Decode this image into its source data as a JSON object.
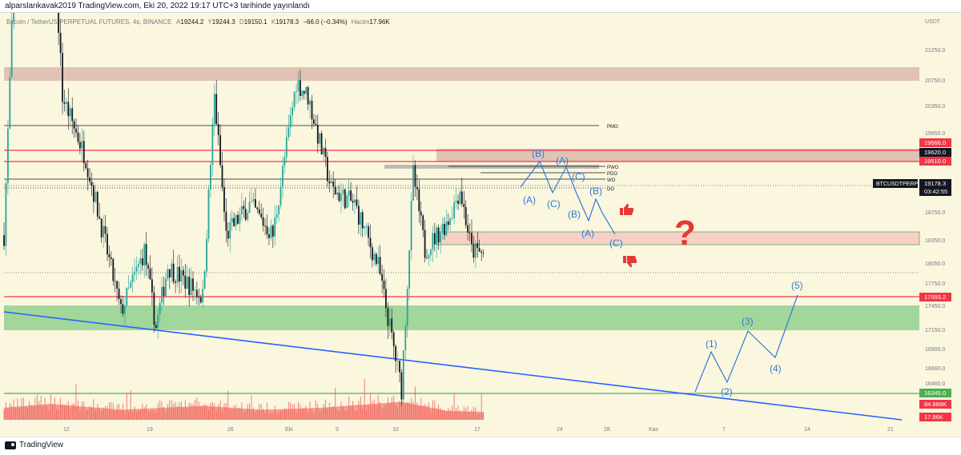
{
  "header": {
    "publish_line": "alparslankavak2019 TradingView.com, Eki 20, 2022 19:17 UTC+3 tarihinde yayınlandı"
  },
  "footer": {
    "brand": "TradingView"
  },
  "legend": {
    "symbol": "Bitcoin / TetherUS PERPETUAL FUTURES, 4s, BINANCE",
    "o_label": "A",
    "o_value": "19244.2",
    "h_label": "Y",
    "h_value": "19244.3",
    "l_label": "D",
    "l_value": "19150.1",
    "c_label": "K",
    "c_value": "19178.3",
    "change": "−66.0 (−0.34%)",
    "volume_label": "Hacim",
    "volume_value": "17.96K"
  },
  "chart_data": {
    "type": "candlestick",
    "title": "Bitcoin / TetherUS PERPETUAL FUTURES, 4s, BINANCE",
    "currency": "USDT",
    "ylim": [
      15900,
      22050
    ],
    "y_ticks": [
      "21250.0",
      "20750.0",
      "20350.0",
      "19950.0",
      "18750.0",
      "18350.0",
      "18050.0",
      "17750.0",
      "17450.0",
      "17150.0",
      "16900.0",
      "16660.0",
      "16460.0"
    ],
    "x_ticks": [
      "12",
      "19",
      "26",
      "Eki",
      "5",
      "10",
      "17",
      "24",
      "28",
      "Kas",
      "7",
      "14",
      "21"
    ],
    "price_key_points": [
      {
        "x": "Sep 9",
        "price": 19300
      },
      {
        "x": "Sep 10",
        "price": 21300
      },
      {
        "x": "Sep 12",
        "price": 22000
      },
      {
        "x": "Sep 13",
        "price": 21600
      },
      {
        "x": "Sep 14",
        "price": 20200
      },
      {
        "x": "Sep 16",
        "price": 19800
      },
      {
        "x": "Sep 19",
        "price": 18800
      },
      {
        "x": "Sep 21",
        "price": 19200
      },
      {
        "x": "Sep 22",
        "price": 18700
      },
      {
        "x": "Sep 23",
        "price": 19100
      },
      {
        "x": "Sep 26",
        "price": 18900
      },
      {
        "x": "Sep 27",
        "price": 20200
      },
      {
        "x": "Sep 28",
        "price": 19300
      },
      {
        "x": "Sep 30",
        "price": 19500
      },
      {
        "x": "Oct 2",
        "price": 19300
      },
      {
        "x": "Oct 4",
        "price": 20300
      },
      {
        "x": "Oct 5",
        "price": 20200
      },
      {
        "x": "Oct 7",
        "price": 19600
      },
      {
        "x": "Oct 9",
        "price": 19500
      },
      {
        "x": "Oct 11",
        "price": 19100
      },
      {
        "x": "Oct 13",
        "price": 18300
      },
      {
        "x": "Oct 14",
        "price": 19700
      },
      {
        "x": "Oct 15",
        "price": 19200
      },
      {
        "x": "Oct 17",
        "price": 19400
      },
      {
        "x": "Oct 18",
        "price": 19600
      },
      {
        "x": "Oct 19",
        "price": 19200
      },
      {
        "x": "Oct 20",
        "price": 19178
      }
    ],
    "volume_key_points": [
      {
        "x": "Sep 9",
        "value": 30
      },
      {
        "x": "Sep 13",
        "value": 40
      },
      {
        "x": "Sep 19",
        "value": 25
      },
      {
        "x": "Sep 26",
        "value": 35
      },
      {
        "x": "Oct 1",
        "value": 25
      },
      {
        "x": "Oct 6",
        "value": 30
      },
      {
        "x": "Oct 13",
        "value": 45
      },
      {
        "x": "Oct 17",
        "value": 22
      },
      {
        "x": "Oct 20",
        "value": 20
      }
    ],
    "price_labels": [
      {
        "value": "19666.0",
        "color": "#f23645"
      },
      {
        "value": "19620.0",
        "color": "#131722"
      },
      {
        "value": "19510.0",
        "color": "#f23645"
      },
      {
        "value": "19178.3",
        "color": "#131722"
      },
      {
        "value": "17593.2",
        "color": "#f23645"
      },
      {
        "value": "16345.0",
        "color": "#4caf50"
      },
      {
        "value": "84.989K",
        "color": "#f23645"
      },
      {
        "value": "17.96K",
        "color": "#f23645"
      }
    ],
    "symbol_tag": "BTCUSDTPERP",
    "countdown": "03:42:55",
    "level_labels": [
      "PMO",
      "PWO",
      "PDO",
      "WO",
      "DO"
    ],
    "wave_labels": [
      "(A)",
      "(B)",
      "(C)",
      "(A)",
      "(B)",
      "(C)",
      "(A)",
      "(B)",
      "(C)",
      "(1)",
      "(2)",
      "(3)",
      "(4)",
      "(5)"
    ],
    "question_mark": "?",
    "colors": {
      "background": "#fbf6de",
      "up": "#26a69a",
      "down": "#131722",
      "volume": "#f0534e",
      "wave": "#2d7bd6",
      "resistance": "#e0c3b5",
      "support": "#a3d69a",
      "trendline": "#2962ff"
    }
  }
}
